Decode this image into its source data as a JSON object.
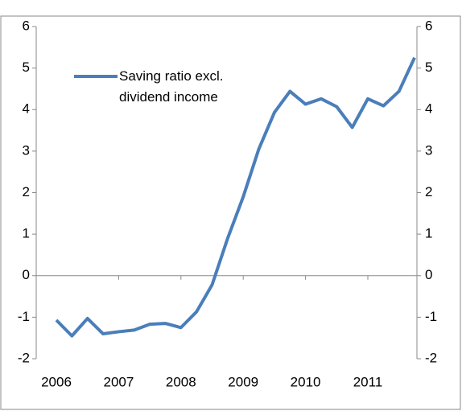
{
  "chart_data": {
    "type": "line",
    "categories": [
      "2006",
      null,
      null,
      null,
      "2007",
      null,
      null,
      null,
      "2008",
      null,
      null,
      null,
      "2009",
      null,
      null,
      null,
      "2010",
      null,
      null,
      null,
      "2011",
      null,
      null,
      null
    ],
    "series": [
      {
        "name": "Saving ratio excl. dividend income",
        "color": "#4a7ebb",
        "values": [
          -1.07,
          -1.45,
          -1.03,
          -1.4,
          -1.35,
          -1.31,
          -1.17,
          -1.15,
          -1.25,
          -0.87,
          -0.22,
          0.9,
          1.9,
          3.05,
          3.93,
          4.44,
          4.13,
          4.26,
          4.07,
          3.57,
          4.26,
          4.09,
          4.44,
          5.25
        ]
      }
    ],
    "ylim": [
      -2,
      6
    ],
    "yticks": [
      -2,
      -1,
      0,
      1,
      2,
      3,
      4,
      5,
      6
    ],
    "y2lim": [
      -2,
      6
    ],
    "y2ticks": [
      -2,
      -1,
      0,
      1,
      2,
      3,
      4,
      5,
      6
    ],
    "legend": "upper left"
  }
}
